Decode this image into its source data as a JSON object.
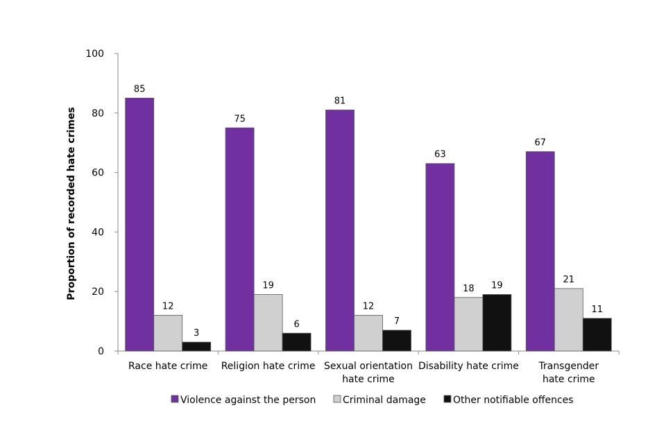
{
  "chart_data": {
    "type": "bar",
    "title": "",
    "xlabel": "",
    "ylabel": "Proportion of recorded hate crimes",
    "ylim": [
      0,
      100
    ],
    "yticks": [
      0,
      20,
      40,
      60,
      80,
      100
    ],
    "grid": false,
    "legend_position": "bottom",
    "categories": [
      [
        "Race hate crime"
      ],
      [
        "Religion hate crime"
      ],
      [
        "Sexual orientation",
        "hate crime"
      ],
      [
        "Disability hate crime"
      ],
      [
        "Transgender",
        "hate crime"
      ]
    ],
    "series": [
      {
        "name": "Violence against the person",
        "color": "#7030A0",
        "values": [
          85,
          75,
          81,
          63,
          67
        ]
      },
      {
        "name": "Criminal damage",
        "color": "#D0D0D0",
        "values": [
          12,
          19,
          12,
          18,
          21
        ]
      },
      {
        "name": "Other notifiable offences",
        "color": "#111111",
        "values": [
          3,
          6,
          7,
          19,
          11
        ]
      }
    ]
  }
}
